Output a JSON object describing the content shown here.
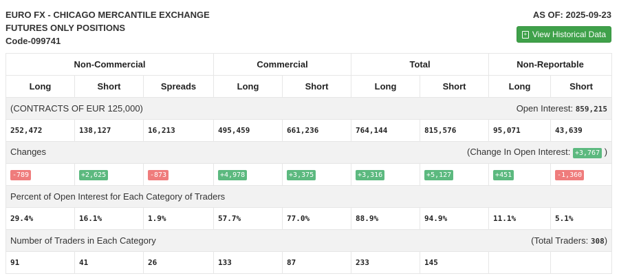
{
  "header": {
    "line1": "EURO FX - CHICAGO MERCANTILE EXCHANGE",
    "line2": "FUTURES ONLY POSITIONS",
    "code": "Code-099741",
    "as_of": "AS OF: 2025-09-23",
    "button": "View Historical Data",
    "button_icon": "calendar-plus-icon"
  },
  "groups": [
    "Non-Commercial",
    "Commercial",
    "Total",
    "Non-Reportable"
  ],
  "columns": [
    "Long",
    "Short",
    "Spreads",
    "Long",
    "Short",
    "Long",
    "Short",
    "Long",
    "Short"
  ],
  "contracts": {
    "label": "(CONTRACTS OF EUR 125,000)",
    "oi_label": "Open Interest: ",
    "oi_value": "859,215",
    "values": [
      "252,472",
      "138,127",
      "16,213",
      "495,459",
      "661,236",
      "764,144",
      "815,576",
      "95,071",
      "43,639"
    ]
  },
  "changes": {
    "label": "Changes",
    "oi_label": "(Change In Open Interest: ",
    "oi_value": "+3,767",
    "oi_close": " )",
    "values": [
      "-789",
      "+2,625",
      "-873",
      "+4,978",
      "+3,375",
      "+3,316",
      "+5,127",
      "+451",
      "-1,360"
    ]
  },
  "percent": {
    "label": "Percent of Open Interest for Each Category of Traders",
    "values": [
      "29.4%",
      "16.1%",
      "1.9%",
      "57.7%",
      "77.0%",
      "88.9%",
      "94.9%",
      "11.1%",
      "5.1%"
    ]
  },
  "traders": {
    "label": "Number of Traders in Each Category",
    "total_label": "(Total Traders: ",
    "total_value": "308",
    "total_close": ")",
    "values": [
      "91",
      "41",
      "26",
      "133",
      "87",
      "233",
      "145",
      "",
      ""
    ]
  },
  "colors": {
    "positive": "#5cb97f",
    "negative": "#ef7c7c",
    "button": "#3fa14a"
  }
}
